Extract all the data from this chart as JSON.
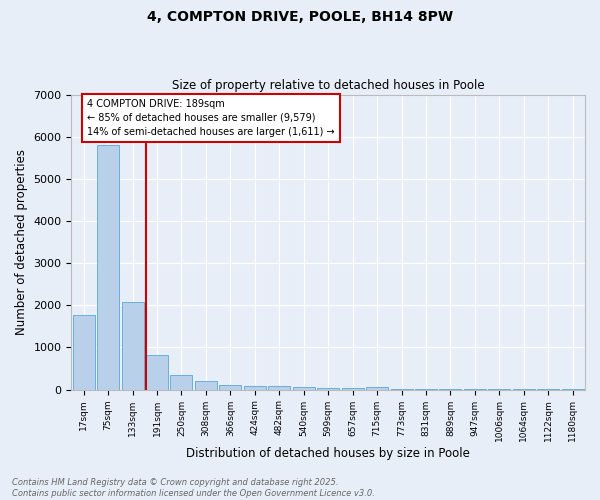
{
  "title": "4, COMPTON DRIVE, POOLE, BH14 8PW",
  "subtitle": "Size of property relative to detached houses in Poole",
  "xlabel": "Distribution of detached houses by size in Poole",
  "ylabel": "Number of detached properties",
  "bar_color": "#b8d0ea",
  "bar_edge_color": "#6aaed6",
  "background_color": "#e8eef8",
  "fig_background_color": "#e8eef8",
  "grid_color": "#ffffff",
  "categories": [
    "17sqm",
    "75sqm",
    "133sqm",
    "191sqm",
    "250sqm",
    "308sqm",
    "366sqm",
    "424sqm",
    "482sqm",
    "540sqm",
    "599sqm",
    "657sqm",
    "715sqm",
    "773sqm",
    "831sqm",
    "889sqm",
    "947sqm",
    "1006sqm",
    "1064sqm",
    "1122sqm",
    "1180sqm"
  ],
  "values": [
    1780,
    5800,
    2090,
    820,
    350,
    195,
    110,
    90,
    75,
    55,
    40,
    30,
    55,
    5,
    5,
    5,
    5,
    5,
    5,
    5,
    5
  ],
  "annotation_text": "4 COMPTON DRIVE: 189sqm\n← 85% of detached houses are smaller (9,579)\n14% of semi-detached houses are larger (1,611) →",
  "annotation_box_color": "#ffffff",
  "annotation_border_color": "#cc0000",
  "vline_color": "#cc0000",
  "footer_text": "Contains HM Land Registry data © Crown copyright and database right 2025.\nContains public sector information licensed under the Open Government Licence v3.0.",
  "ylim": [
    0,
    7000
  ],
  "yticks": [
    0,
    1000,
    2000,
    3000,
    4000,
    5000,
    6000,
    7000
  ],
  "red_line_bin": 3
}
